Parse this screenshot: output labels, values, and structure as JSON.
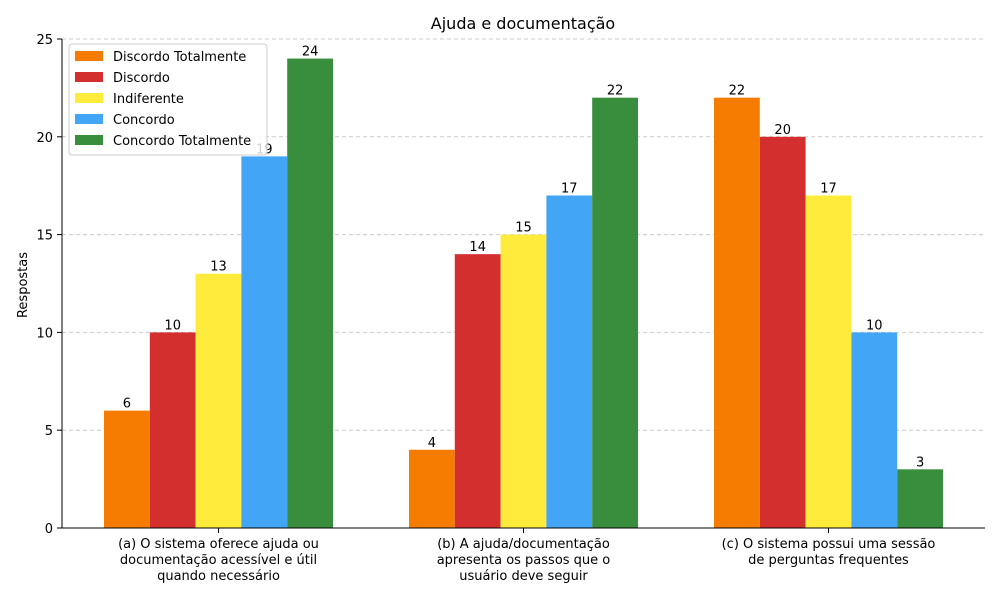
{
  "chart_data": {
    "type": "bar",
    "title": "Ajuda e documentação",
    "xlabel": "",
    "ylabel": "Respostas",
    "ylim": [
      0,
      25
    ],
    "yticks": [
      0,
      5,
      10,
      15,
      20,
      25
    ],
    "grid": true,
    "legend_position": "top-left",
    "categories": [
      [
        "(a) O sistema oferece ajuda ou",
        "documentação acessível e útil",
        "quando necessário"
      ],
      [
        "(b) A ajuda/documentação",
        "apresenta os passos que o",
        "usuário deve seguir"
      ],
      [
        "(c) O sistema possui uma sessão",
        "de perguntas frequentes"
      ]
    ],
    "series": [
      {
        "name": "Discordo Totalmente",
        "color": "#f57c00",
        "values": [
          6,
          4,
          22
        ]
      },
      {
        "name": "Discordo",
        "color": "#d32f2f",
        "values": [
          10,
          14,
          20
        ]
      },
      {
        "name": "Indiferente",
        "color": "#ffeb3b",
        "values": [
          13,
          15,
          17
        ]
      },
      {
        "name": "Concordo",
        "color": "#42a5f5",
        "values": [
          19,
          17,
          10
        ]
      },
      {
        "name": "Concordo Totalmente",
        "color": "#388e3c",
        "values": [
          24,
          22,
          3
        ]
      }
    ]
  }
}
